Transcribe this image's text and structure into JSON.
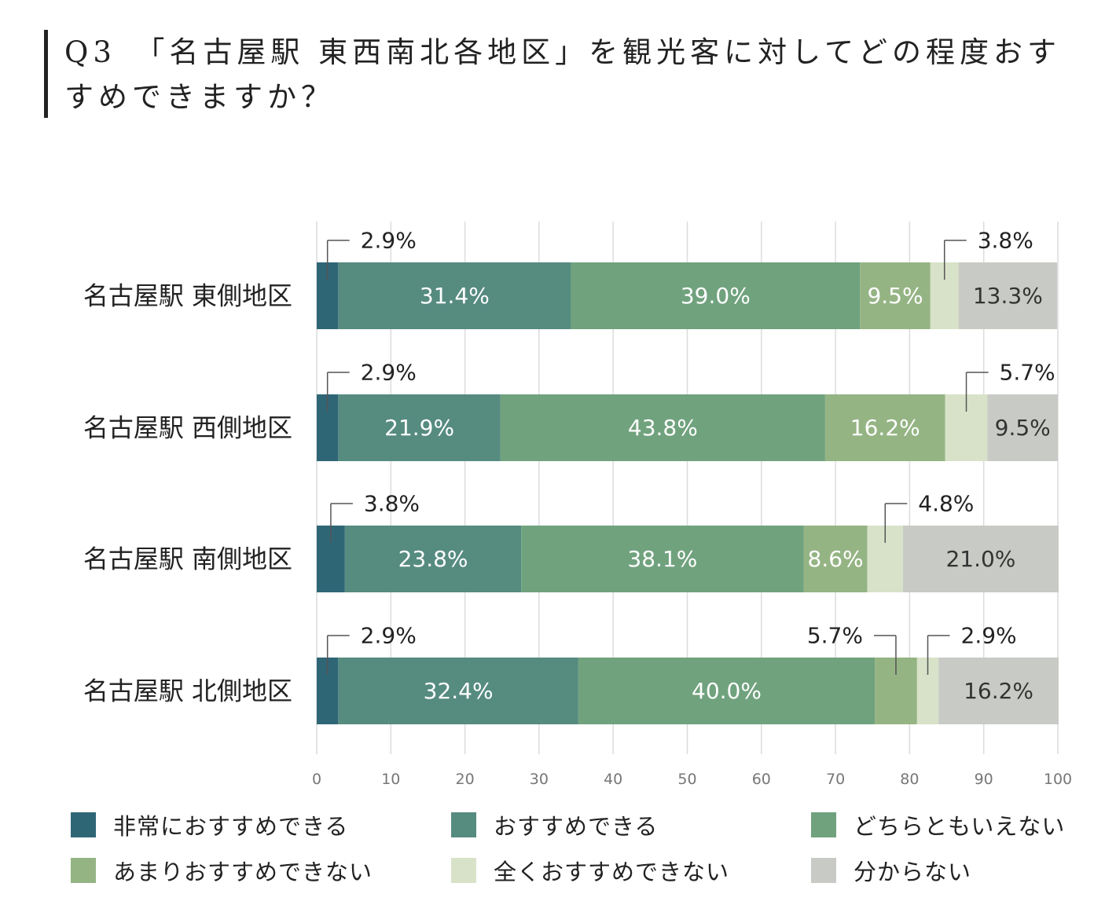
{
  "title": "Q3　「名古屋駅 東西南北各地区」を観光客に対してどの程度おすすめできますか？",
  "chart_data": {
    "type": "bar",
    "orientation": "horizontal",
    "stacked": true,
    "categories": [
      "名古屋駅 東側地区",
      "名古屋駅 西側地区",
      "名古屋駅 南側地区",
      "名古屋駅 北側地区"
    ],
    "series": [
      {
        "name": "非常におすすめできる",
        "color": "#2f6676",
        "values": [
          2.9,
          2.9,
          3.8,
          2.9
        ],
        "labels": [
          "2.9%",
          "2.9%",
          "3.8%",
          "2.9%"
        ]
      },
      {
        "name": "おすすめできる",
        "color": "#568b80",
        "values": [
          31.4,
          21.9,
          23.8,
          32.4
        ],
        "labels": [
          "31.4%",
          "21.9%",
          "23.8%",
          "32.4%"
        ]
      },
      {
        "name": "どちらともいえない",
        "color": "#70a27e",
        "values": [
          39.0,
          43.8,
          38.1,
          40.0
        ],
        "labels": [
          "39.0%",
          "43.8%",
          "38.1%",
          "40.0%"
        ]
      },
      {
        "name": "あまりおすすめできない",
        "color": "#95b484",
        "values": [
          9.5,
          16.2,
          8.6,
          5.7
        ],
        "labels": [
          "9.5%",
          "16.2%",
          "8.6%",
          "5.7%"
        ]
      },
      {
        "name": "全くおすすめできない",
        "color": "#d8e2c9",
        "values": [
          3.8,
          5.7,
          4.8,
          2.9
        ],
        "labels": [
          "3.8%",
          "5.7%",
          "4.8%",
          "2.9%"
        ]
      },
      {
        "name": "分からない",
        "color": "#c8cbc5",
        "values": [
          13.3,
          9.5,
          21.0,
          16.2
        ],
        "labels": [
          "13.3%",
          "9.5%",
          "21.0%",
          "16.2%"
        ]
      }
    ],
    "xlim": [
      0,
      100
    ],
    "xticks": [
      "0",
      "10",
      "20",
      "30",
      "40",
      "50",
      "60",
      "70",
      "80",
      "90",
      "100"
    ],
    "grid": true,
    "legend_position": "bottom"
  }
}
